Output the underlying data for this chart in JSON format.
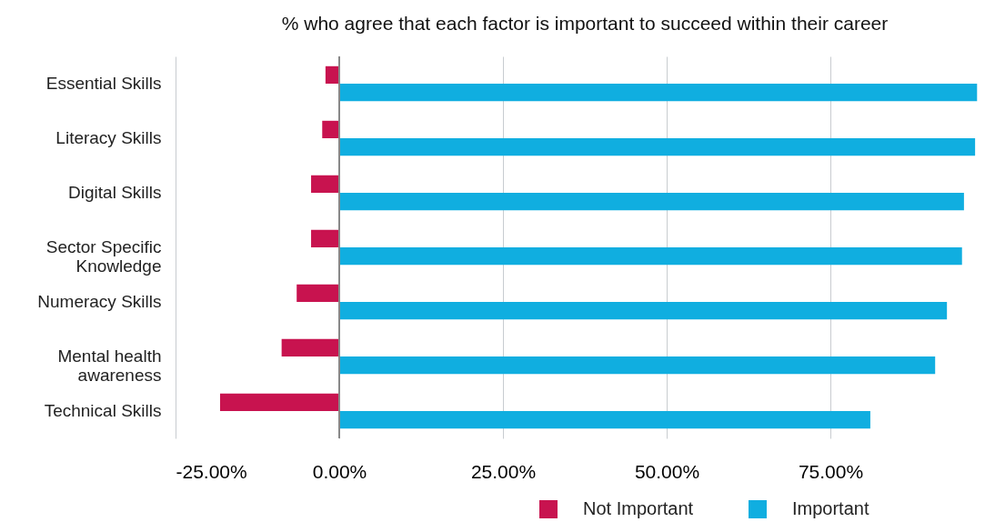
{
  "chart_data": {
    "type": "bar",
    "orientation": "horizontal",
    "title": "% who agree that each factor is important to succeed within their career",
    "categories": [
      "Essential Skills",
      "Literacy Skills",
      "Digital Skills",
      "Sector Specific Knowledge",
      "Numeracy Skills",
      "Mental health awareness",
      "Technical Skills"
    ],
    "series": [
      {
        "name": "Not Important",
        "color": "#c8134f",
        "values": [
          -2.1,
          -2.6,
          -4.3,
          -4.3,
          -6.5,
          -8.8,
          -18.2
        ]
      },
      {
        "name": "Important",
        "color": "#10aee0",
        "values": [
          97.4,
          97.1,
          95.4,
          95.1,
          92.8,
          91.0,
          81.1
        ]
      }
    ],
    "xlim": [
      -25,
      100
    ],
    "xticks": [
      {
        "value": -25,
        "label": "-25.00%"
      },
      {
        "value": 0,
        "label": "0.00%"
      },
      {
        "value": 25,
        "label": "25.00%"
      },
      {
        "value": 50,
        "label": "50.00%"
      },
      {
        "value": 75,
        "label": "75.00%"
      }
    ],
    "ref_lines": [
      {
        "axis": "x",
        "value": 0,
        "color": "#888888"
      }
    ],
    "grid": "x",
    "legend": "bottom right"
  }
}
